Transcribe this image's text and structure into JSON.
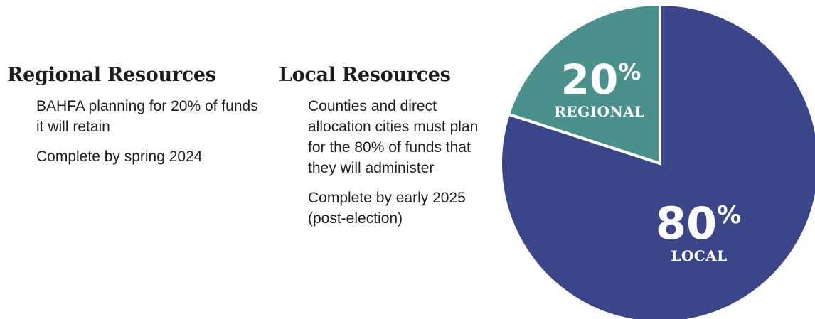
{
  "left_section": {
    "heading": "Regional Resources",
    "items": [
      "BAHFA planning for 20% of funds it will retain",
      "Complete by spring 2024"
    ]
  },
  "right_section": {
    "heading": "Local Resources",
    "items": [
      "Counties and direct allocation cities must plan for the 80% of funds that they will administer",
      "Complete by early 2025 (post-election)"
    ]
  },
  "chart_data": {
    "type": "pie",
    "slices": [
      {
        "number": "20",
        "percent_sign": "%",
        "label": "REGIONAL",
        "value": 20,
        "color": "#4a918d"
      },
      {
        "number": "80",
        "percent_sign": "%",
        "label": "LOCAL",
        "value": 80,
        "color": "#3a4689"
      }
    ]
  }
}
